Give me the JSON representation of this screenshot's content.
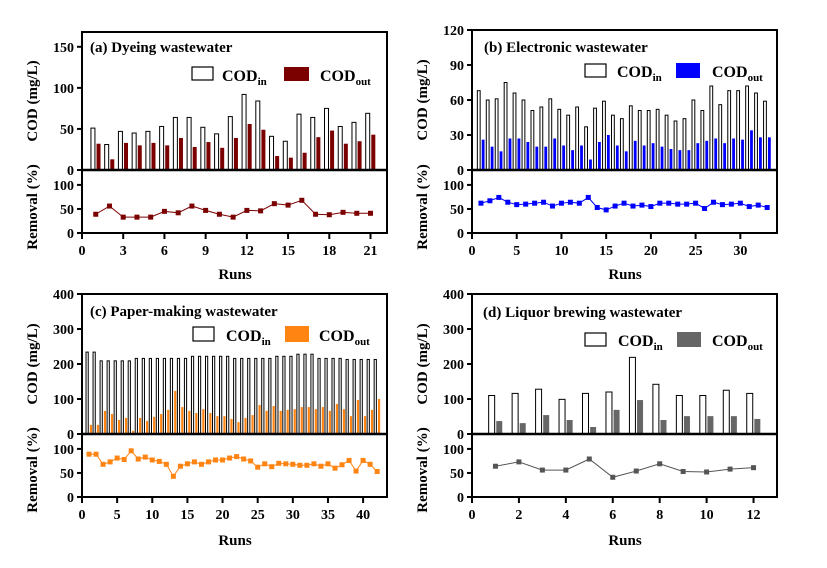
{
  "chart_data": [
    {
      "type": "bar+line",
      "title": "(a) Dyeing wastewater",
      "xlabel": "Runs",
      "ylabel_top": "COD (mg/L)",
      "ylabel_bottom": "Removal (%)",
      "legend": {
        "in_main": "COD",
        "in_sub": "in",
        "out_main": "COD",
        "out_sub": "out",
        "placement": "top-right"
      },
      "colors": {
        "cod_out": "#7b0000",
        "removal": "#7b0000"
      },
      "xlim": [
        0,
        22.2
      ],
      "xticks": [
        0,
        3,
        6,
        9,
        12,
        15,
        18,
        21
      ],
      "cod_ylim": [
        0,
        168
      ],
      "cod_yticks": [
        0,
        50,
        100,
        150
      ],
      "removal_ylim": [
        0,
        131
      ],
      "removal_yticks": [
        0,
        50,
        100
      ],
      "x": [
        1,
        2,
        3,
        4,
        5,
        6,
        7,
        8,
        9,
        10,
        11,
        12,
        13,
        14,
        15,
        16,
        17,
        18,
        19,
        20,
        21
      ],
      "series": [
        {
          "name": "CODin",
          "values": [
            51,
            31,
            47,
            45,
            47,
            53,
            64,
            64,
            52,
            44,
            65,
            92,
            84,
            41,
            35,
            68,
            64,
            75,
            53,
            58,
            69
          ]
        },
        {
          "name": "CODout",
          "values": [
            32,
            13,
            33,
            30,
            33,
            30,
            39,
            28,
            34,
            27,
            39,
            56,
            49,
            17,
            15,
            21,
            40,
            48,
            32,
            35,
            43
          ]
        },
        {
          "name": "Removal",
          "values": [
            39,
            56,
            33,
            33,
            33,
            45,
            42,
            56,
            47,
            39,
            33,
            47,
            46,
            61,
            58,
            68,
            39,
            38,
            43,
            41,
            41
          ]
        }
      ]
    },
    {
      "type": "bar+line",
      "title": "(b) Electronic wastewater",
      "xlabel": "Runs",
      "ylabel_top": "COD (mg/L)",
      "ylabel_bottom": "Removal (%)",
      "legend": {
        "in_main": "COD",
        "in_sub": "in",
        "out_main": "COD",
        "out_sub": "out",
        "placement": "top-right"
      },
      "colors": {
        "cod_out": "#0000ff",
        "removal": "#0000ff"
      },
      "xlim": [
        0,
        34.1
      ],
      "xticks": [
        0,
        5,
        10,
        15,
        20,
        25,
        30
      ],
      "cod_ylim": [
        0,
        120
      ],
      "cod_yticks": [
        0,
        30,
        60,
        90,
        120
      ],
      "removal_ylim": [
        0,
        131
      ],
      "removal_yticks": [
        0,
        50,
        100
      ],
      "x": [
        1,
        2,
        3,
        4,
        5,
        6,
        7,
        8,
        9,
        10,
        11,
        12,
        13,
        14,
        15,
        16,
        17,
        18,
        19,
        20,
        21,
        22,
        23,
        24,
        25,
        26,
        27,
        28,
        29,
        30,
        31,
        32,
        33
      ],
      "series": [
        {
          "name": "CODin",
          "values": [
            68,
            60,
            61,
            75,
            66,
            60,
            51,
            54,
            61,
            52,
            47,
            54,
            37,
            53,
            59,
            47,
            44,
            55,
            51,
            51,
            52,
            47,
            42,
            44,
            60,
            51,
            72,
            56,
            68,
            68,
            72,
            66,
            59
          ]
        },
        {
          "name": "CODout",
          "values": [
            26,
            20,
            16,
            27,
            27,
            24,
            20,
            20,
            27,
            21,
            17,
            21,
            9,
            24,
            30,
            21,
            16,
            25,
            21,
            23,
            20,
            18,
            17,
            17,
            23,
            25,
            27,
            23,
            27,
            26,
            34,
            28,
            28
          ]
        },
        {
          "name": "Removal",
          "values": [
            62,
            67,
            74,
            64,
            59,
            60,
            62,
            64,
            56,
            62,
            64,
            62,
            74,
            53,
            48,
            56,
            62,
            56,
            58,
            55,
            62,
            62,
            60,
            60,
            62,
            51,
            64,
            59,
            60,
            62,
            55,
            58,
            53
          ]
        }
      ]
    },
    {
      "type": "bar+line",
      "title": "(c) Paper-making wastewater",
      "xlabel": "Runs",
      "ylabel_top": "COD (mg/L)",
      "ylabel_bottom": "Removal (%)",
      "legend": {
        "in_main": "COD",
        "in_sub": "in",
        "out_main": "COD",
        "out_sub": "out",
        "placement": "top-right"
      },
      "colors": {
        "cod_out": "#ff8412",
        "removal": "#ff8412"
      },
      "xlim": [
        0,
        43.4
      ],
      "xticks": [
        0,
        5,
        10,
        15,
        20,
        25,
        30,
        35,
        40
      ],
      "cod_ylim": [
        0,
        400
      ],
      "cod_yticks": [
        0,
        100,
        200,
        300,
        400
      ],
      "removal_ylim": [
        0,
        131
      ],
      "removal_yticks": [
        0,
        50,
        100
      ],
      "x": [
        1,
        2,
        3,
        4,
        5,
        6,
        7,
        8,
        9,
        10,
        11,
        12,
        13,
        14,
        15,
        16,
        17,
        18,
        19,
        20,
        21,
        22,
        23,
        24,
        25,
        26,
        27,
        28,
        29,
        30,
        31,
        32,
        33,
        34,
        35,
        36,
        37,
        38,
        39,
        40,
        41,
        42
      ],
      "series": [
        {
          "name": "CODin",
          "values": [
            234,
            234,
            209,
            209,
            209,
            209,
            209,
            216,
            216,
            216,
            216,
            216,
            216,
            216,
            216,
            222,
            222,
            222,
            222,
            222,
            222,
            216,
            216,
            216,
            216,
            216,
            216,
            222,
            222,
            222,
            228,
            228,
            228,
            216,
            216,
            216,
            216,
            213,
            213,
            213,
            213,
            213
          ]
        },
        {
          "name": "CODout",
          "values": [
            26,
            26,
            66,
            57,
            40,
            46,
            9,
            46,
            37,
            49,
            57,
            69,
            123,
            77,
            66,
            60,
            71,
            60,
            51,
            51,
            43,
            34,
            46,
            54,
            83,
            66,
            80,
            66,
            69,
            71,
            77,
            77,
            71,
            77,
            66,
            86,
            71,
            51,
            97,
            51,
            69,
            100
          ]
        },
        {
          "name": "Removal",
          "values": [
            89,
            89,
            68,
            73,
            81,
            78,
            96,
            79,
            83,
            77,
            74,
            68,
            43,
            64,
            69,
            73,
            68,
            73,
            77,
            77,
            81,
            84,
            79,
            75,
            62,
            69,
            63,
            70,
            69,
            68,
            66,
            66,
            69,
            64,
            69,
            60,
            67,
            76,
            54,
            76,
            68,
            53
          ]
        }
      ]
    },
    {
      "type": "bar+line",
      "title": "(d) Liquor brewing wastewater",
      "xlabel": "Runs",
      "ylabel_top": "COD (mg/L)",
      "ylabel_bottom": "Removal (%)",
      "legend": {
        "in_main": "COD",
        "in_sub": "in",
        "out_main": "COD",
        "out_sub": "out",
        "placement": "top-right"
      },
      "colors": {
        "cod_out": "#666666",
        "removal": "#555555"
      },
      "xlim": [
        0,
        13.0
      ],
      "xticks": [
        0,
        2,
        4,
        6,
        8,
        10,
        12
      ],
      "cod_ylim": [
        0,
        400
      ],
      "cod_yticks": [
        0,
        100,
        200,
        300,
        400
      ],
      "removal_ylim": [
        0,
        131
      ],
      "removal_yticks": [
        0,
        50,
        100
      ],
      "x": [
        1,
        2,
        3,
        4,
        5,
        6,
        7,
        8,
        9,
        10,
        11,
        12
      ],
      "series": [
        {
          "name": "CODin",
          "values": [
            110,
            116,
            128,
            99,
            116,
            120,
            219,
            142,
            110,
            110,
            125,
            116
          ]
        },
        {
          "name": "CODout",
          "values": [
            37,
            31,
            54,
            40,
            20,
            69,
            97,
            40,
            51,
            51,
            51,
            43
          ]
        },
        {
          "name": "Removal",
          "values": [
            64,
            73,
            56,
            56,
            79,
            41,
            54,
            69,
            53,
            52,
            58,
            61
          ]
        }
      ]
    }
  ]
}
